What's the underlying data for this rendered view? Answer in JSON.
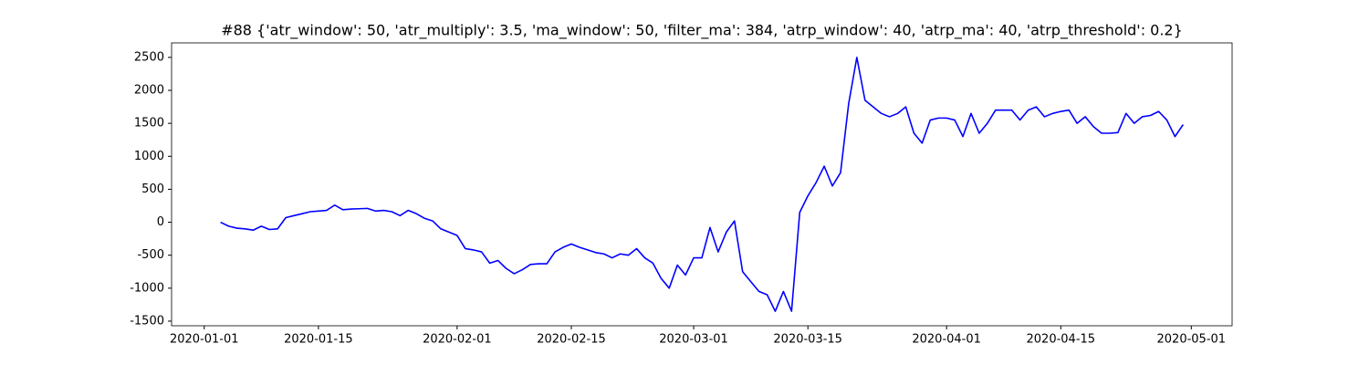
{
  "chart_data": {
    "type": "line",
    "title": "#88 {'atr_window': 50, 'atr_multiply': 3.5, 'ma_window': 50, 'filter_ma': 384, 'atrp_window': 40, 'atrp_ma': 40, 'atrp_threshold': 0.2}",
    "x": [
      "2020-01-03",
      "2020-01-04",
      "2020-01-05",
      "2020-01-06",
      "2020-01-07",
      "2020-01-08",
      "2020-01-09",
      "2020-01-10",
      "2020-01-11",
      "2020-01-12",
      "2020-01-13",
      "2020-01-14",
      "2020-01-15",
      "2020-01-16",
      "2020-01-17",
      "2020-01-18",
      "2020-01-19",
      "2020-01-20",
      "2020-01-21",
      "2020-01-22",
      "2020-01-23",
      "2020-01-24",
      "2020-01-25",
      "2020-01-26",
      "2020-01-27",
      "2020-01-28",
      "2020-01-29",
      "2020-01-30",
      "2020-01-31",
      "2020-02-01",
      "2020-02-02",
      "2020-02-03",
      "2020-02-04",
      "2020-02-05",
      "2020-02-06",
      "2020-02-07",
      "2020-02-08",
      "2020-02-09",
      "2020-02-10",
      "2020-02-11",
      "2020-02-12",
      "2020-02-13",
      "2020-02-14",
      "2020-02-15",
      "2020-02-16",
      "2020-02-17",
      "2020-02-18",
      "2020-02-19",
      "2020-02-20",
      "2020-02-21",
      "2020-02-22",
      "2020-02-23",
      "2020-02-24",
      "2020-02-25",
      "2020-02-26",
      "2020-02-27",
      "2020-02-28",
      "2020-02-29",
      "2020-03-01",
      "2020-03-02",
      "2020-03-03",
      "2020-03-04",
      "2020-03-05",
      "2020-03-06",
      "2020-03-07",
      "2020-03-08",
      "2020-03-09",
      "2020-03-10",
      "2020-03-11",
      "2020-03-12",
      "2020-03-13",
      "2020-03-14",
      "2020-03-15",
      "2020-03-16",
      "2020-03-17",
      "2020-03-18",
      "2020-03-19",
      "2020-03-20",
      "2020-03-21",
      "2020-03-22",
      "2020-03-23",
      "2020-03-24",
      "2020-03-25",
      "2020-03-26",
      "2020-03-27",
      "2020-03-28",
      "2020-03-29",
      "2020-03-30",
      "2020-03-31",
      "2020-04-01",
      "2020-04-02",
      "2020-04-03",
      "2020-04-04",
      "2020-04-05",
      "2020-04-06",
      "2020-04-07",
      "2020-04-08",
      "2020-04-09",
      "2020-04-10",
      "2020-04-11",
      "2020-04-12",
      "2020-04-13",
      "2020-04-14",
      "2020-04-15",
      "2020-04-16",
      "2020-04-17",
      "2020-04-18",
      "2020-04-19",
      "2020-04-20",
      "2020-04-21",
      "2020-04-22",
      "2020-04-23",
      "2020-04-24",
      "2020-04-25",
      "2020-04-26",
      "2020-04-27",
      "2020-04-28",
      "2020-04-29",
      "2020-04-30"
    ],
    "values": [
      0,
      -60,
      -90,
      -100,
      -120,
      -60,
      -110,
      -100,
      70,
      100,
      130,
      160,
      170,
      180,
      260,
      190,
      200,
      205,
      210,
      170,
      180,
      160,
      100,
      180,
      130,
      60,
      20,
      -100,
      -150,
      -200,
      -400,
      -420,
      -450,
      -620,
      -580,
      -700,
      -780,
      -720,
      -640,
      -630,
      -630,
      -450,
      -380,
      -330,
      -380,
      -420,
      -460,
      -480,
      -540,
      -480,
      -500,
      -400,
      -540,
      -620,
      -850,
      -1000,
      -650,
      -800,
      -540,
      -540,
      -80,
      -450,
      -150,
      20,
      -750,
      -900,
      -1050,
      -1100,
      -1350,
      -1050,
      -1350,
      150,
      400,
      600,
      850,
      550,
      750,
      1800,
      2500,
      1850,
      1750,
      1650,
      1600,
      1650,
      1750,
      1350,
      1200,
      1550,
      1580,
      1580,
      1550,
      1300,
      1650,
      1350,
      1500,
      1700,
      1700,
      1700,
      1550,
      1700,
      1750,
      1600,
      1650,
      1680,
      1700,
      1500,
      1600,
      1450,
      1350,
      1350,
      1360,
      1650,
      1500,
      1600,
      1620,
      1680,
      1550,
      1300,
      1480
    ],
    "color": "#0000ff",
    "xlim": [
      "2019-12-28",
      "2020-05-06"
    ],
    "xticks": [
      "2020-01-01",
      "2020-01-15",
      "2020-02-01",
      "2020-02-15",
      "2020-03-01",
      "2020-03-15",
      "2020-04-01",
      "2020-04-15",
      "2020-05-01"
    ],
    "ylim": [
      -1570,
      2720
    ],
    "yticks": [
      -1500,
      -1000,
      -500,
      0,
      500,
      1000,
      1500,
      2000,
      2500
    ],
    "grid": false
  }
}
